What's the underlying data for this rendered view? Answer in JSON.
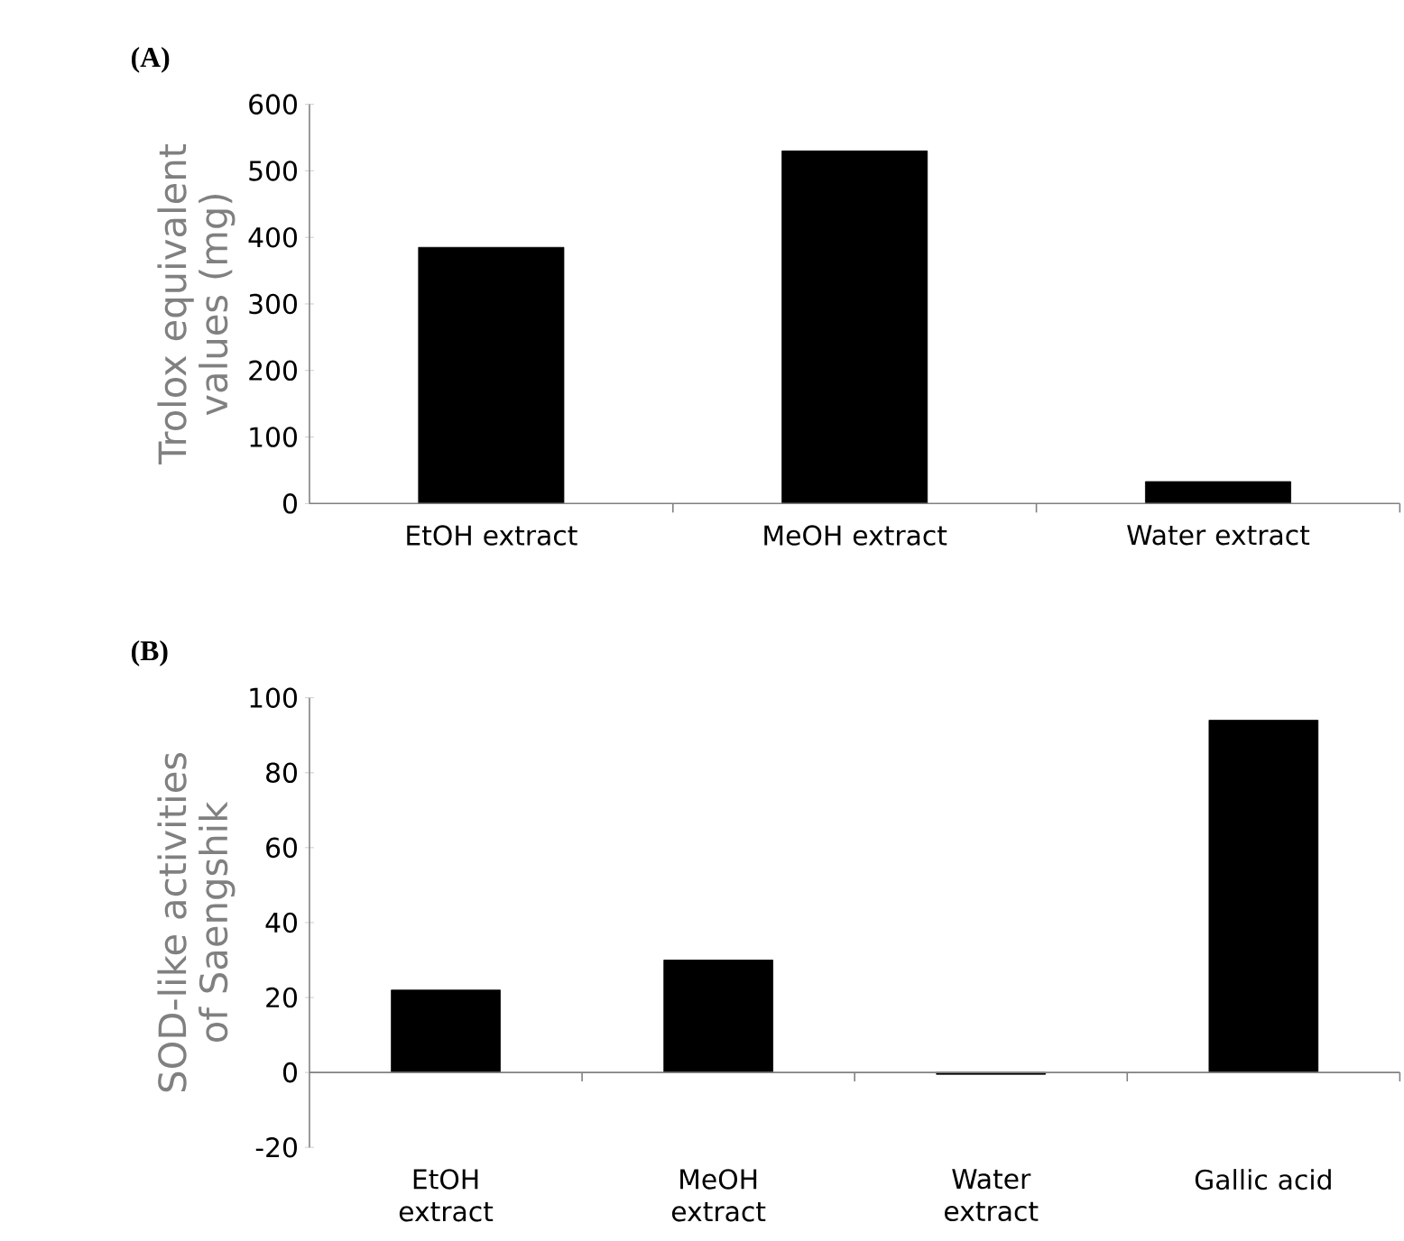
{
  "chart_data": [
    {
      "type": "bar",
      "title": "(A)",
      "ylabel": "Trolox equivalent values (mg)",
      "categories": [
        "EtOH extract",
        "MeOH extract",
        "Water extract"
      ],
      "values": [
        385,
        530,
        33
      ],
      "color": "#000000",
      "ylim": [
        0,
        600
      ],
      "yticks": [
        0,
        100,
        200,
        300,
        400,
        500,
        600
      ]
    },
    {
      "type": "bar",
      "title": "(B)",
      "ylabel": "SOD-like activities of Saengshik",
      "categories": [
        "EtOH extract",
        "MeOH extract",
        "Water extract",
        "Gallic acid"
      ],
      "values": [
        22,
        30,
        -0.5,
        94
      ],
      "color": "#000000",
      "ylim": [
        -20,
        100
      ],
      "yticks": [
        -20,
        0,
        20,
        40,
        60,
        80,
        100
      ]
    }
  ]
}
